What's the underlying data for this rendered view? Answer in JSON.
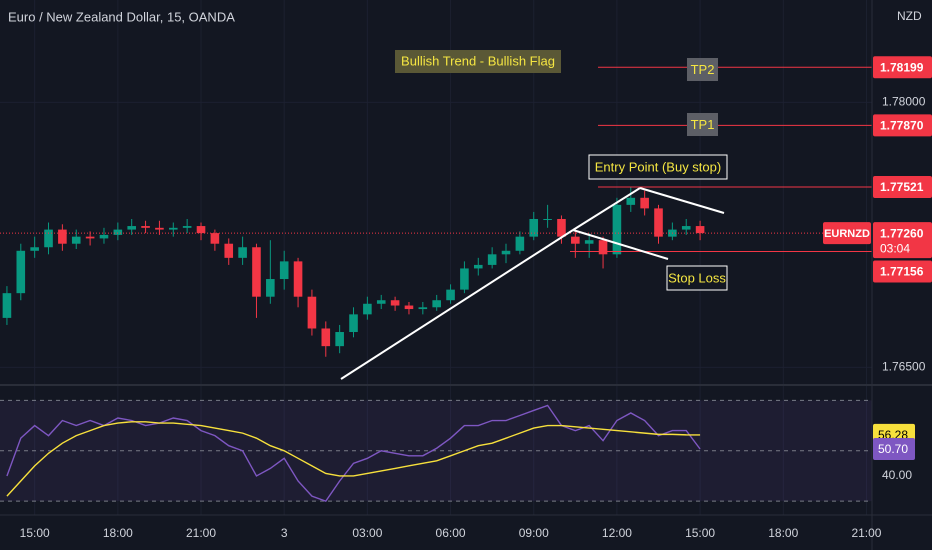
{
  "chart_data": {
    "type": "candlestick",
    "title": "Euro / New Zealand Dollar, 15, OANDA",
    "currency": "NZD",
    "annotation": "Bullish Trend - Bullish Flag",
    "up_color": "#089981",
    "down_color": "#f23645",
    "xlim": [
      -0.5,
      62.4
    ],
    "xticks": [
      {
        "value": 2,
        "label": "15:00"
      },
      {
        "value": 8,
        "label": "18:00"
      },
      {
        "value": 14,
        "label": "21:00"
      },
      {
        "value": 20,
        "label": "3"
      },
      {
        "value": 26,
        "label": "03:00"
      },
      {
        "value": 32,
        "label": "06:00"
      },
      {
        "value": 38,
        "label": "09:00"
      },
      {
        "value": 44,
        "label": "12:00"
      },
      {
        "value": 50,
        "label": "15:00"
      },
      {
        "value": 56,
        "label": "18:00"
      },
      {
        "value": 62,
        "label": "21:00"
      }
    ],
    "ylim": [
      1.764,
      1.7858
    ],
    "yticks": [
      {
        "value": 1.78,
        "label": "1.78000"
      },
      {
        "value": 1.765,
        "label": "1.76500"
      }
    ],
    "ohlc": [
      [
        1.7678,
        1.7696,
        1.7674,
        1.7692
      ],
      [
        1.7692,
        1.772,
        1.7688,
        1.7716
      ],
      [
        1.7716,
        1.7724,
        1.7712,
        1.7718
      ],
      [
        1.7718,
        1.7732,
        1.7714,
        1.7728
      ],
      [
        1.7728,
        1.7731,
        1.7716,
        1.772
      ],
      [
        1.772,
        1.7728,
        1.7717,
        1.7724
      ],
      [
        1.7724,
        1.7727,
        1.7719,
        1.7723
      ],
      [
        1.7723,
        1.7729,
        1.772,
        1.7725
      ],
      [
        1.7725,
        1.7732,
        1.7722,
        1.7728
      ],
      [
        1.7728,
        1.7734,
        1.7725,
        1.773
      ],
      [
        1.773,
        1.7733,
        1.7726,
        1.7729
      ],
      [
        1.7729,
        1.7733,
        1.7725,
        1.7728
      ],
      [
        1.7728,
        1.7732,
        1.7724,
        1.7729
      ],
      [
        1.7729,
        1.7734,
        1.7726,
        1.773
      ],
      [
        1.773,
        1.7732,
        1.7722,
        1.7726
      ],
      [
        1.7726,
        1.7728,
        1.7716,
        1.772
      ],
      [
        1.772,
        1.7723,
        1.7708,
        1.7712
      ],
      [
        1.7712,
        1.7724,
        1.7708,
        1.7718
      ],
      [
        1.7718,
        1.772,
        1.7678,
        1.769
      ],
      [
        1.769,
        1.7722,
        1.7686,
        1.77
      ],
      [
        1.77,
        1.7716,
        1.7694,
        1.771
      ],
      [
        1.771,
        1.7712,
        1.7684,
        1.769
      ],
      [
        1.769,
        1.7694,
        1.7668,
        1.7672
      ],
      [
        1.7672,
        1.7676,
        1.7656,
        1.7662
      ],
      [
        1.7662,
        1.7674,
        1.7658,
        1.767
      ],
      [
        1.767,
        1.7684,
        1.7667,
        1.768
      ],
      [
        1.768,
        1.769,
        1.7677,
        1.7686
      ],
      [
        1.7686,
        1.7691,
        1.7683,
        1.7688
      ],
      [
        1.7688,
        1.769,
        1.7682,
        1.7685
      ],
      [
        1.7685,
        1.7687,
        1.768,
        1.7683
      ],
      [
        1.7683,
        1.7687,
        1.768,
        1.7684
      ],
      [
        1.7684,
        1.7691,
        1.7682,
        1.7688
      ],
      [
        1.7688,
        1.7697,
        1.7686,
        1.7694
      ],
      [
        1.7694,
        1.771,
        1.7692,
        1.7706
      ],
      [
        1.7706,
        1.7712,
        1.7702,
        1.7708
      ],
      [
        1.7708,
        1.7718,
        1.7706,
        1.7714
      ],
      [
        1.7714,
        1.772,
        1.7709,
        1.7716
      ],
      [
        1.7716,
        1.7727,
        1.7714,
        1.7724
      ],
      [
        1.7724,
        1.7738,
        1.7722,
        1.7734
      ],
      [
        1.7734,
        1.7742,
        1.7729,
        1.7734
      ],
      [
        1.7734,
        1.7736,
        1.772,
        1.7724
      ],
      [
        1.7724,
        1.7728,
        1.7712,
        1.772
      ],
      [
        1.772,
        1.7726,
        1.7712,
        1.7722
      ],
      [
        1.7722,
        1.7724,
        1.7706,
        1.7714
      ],
      [
        1.7714,
        1.7746,
        1.7712,
        1.7742
      ],
      [
        1.7742,
        1.7752,
        1.7738,
        1.7746
      ],
      [
        1.7746,
        1.775,
        1.7736,
        1.774
      ],
      [
        1.774,
        1.7742,
        1.772,
        1.7724
      ],
      [
        1.7724,
        1.7732,
        1.7722,
        1.7728
      ],
      [
        1.7728,
        1.7734,
        1.7725,
        1.773
      ],
      [
        1.773,
        1.7733,
        1.7722,
        1.7726
      ]
    ],
    "current": {
      "symbol": "EURNZD",
      "value": 1.7726,
      "label": "1.77260",
      "countdown": "03:04"
    },
    "levels": [
      {
        "name": "TP2",
        "value": 1.78199,
        "label": "1.78199"
      },
      {
        "name": "TP1",
        "value": 1.7787,
        "label": "1.77870"
      },
      {
        "name": "Entry Point (Buy stop)",
        "value": 1.77521,
        "label": "1.77521"
      },
      {
        "name": "Stop Loss",
        "value": 1.77156,
        "label": "1.77156"
      }
    ],
    "indicator": {
      "ylim": [
        24.5,
        76.1
      ],
      "yticks": [
        {
          "value": 40,
          "label": "40.00"
        }
      ],
      "bands": [
        70,
        50,
        30
      ],
      "rsi": {
        "color": "#7e57c2",
        "last_label": "50.70",
        "values": [
          40,
          55,
          60,
          56,
          62,
          60,
          62,
          60,
          63,
          62,
          60,
          61,
          63,
          62,
          58,
          56,
          52,
          50,
          40,
          43,
          47,
          38,
          32,
          30,
          38,
          45,
          47,
          50,
          49,
          48,
          48,
          51,
          55,
          60,
          60,
          62,
          62,
          64,
          66,
          68,
          60,
          58,
          60,
          54,
          62,
          65,
          62,
          56,
          58,
          58,
          50.7
        ]
      },
      "rsi_ma": {
        "color": "#f7e03c",
        "last_label": "56.28",
        "values": [
          32,
          38,
          44,
          49,
          53,
          56,
          58,
          60,
          61,
          61.5,
          61.5,
          61,
          61,
          60.5,
          60,
          59,
          58,
          57,
          55,
          52,
          50,
          47,
          44,
          41,
          40,
          40,
          41,
          42,
          43,
          44,
          45,
          46,
          48,
          50,
          52,
          53,
          55,
          57,
          59,
          60,
          60,
          59.5,
          59,
          58.5,
          58,
          57.5,
          57,
          56.5,
          56.5,
          56.3,
          56.28
        ]
      }
    }
  }
}
